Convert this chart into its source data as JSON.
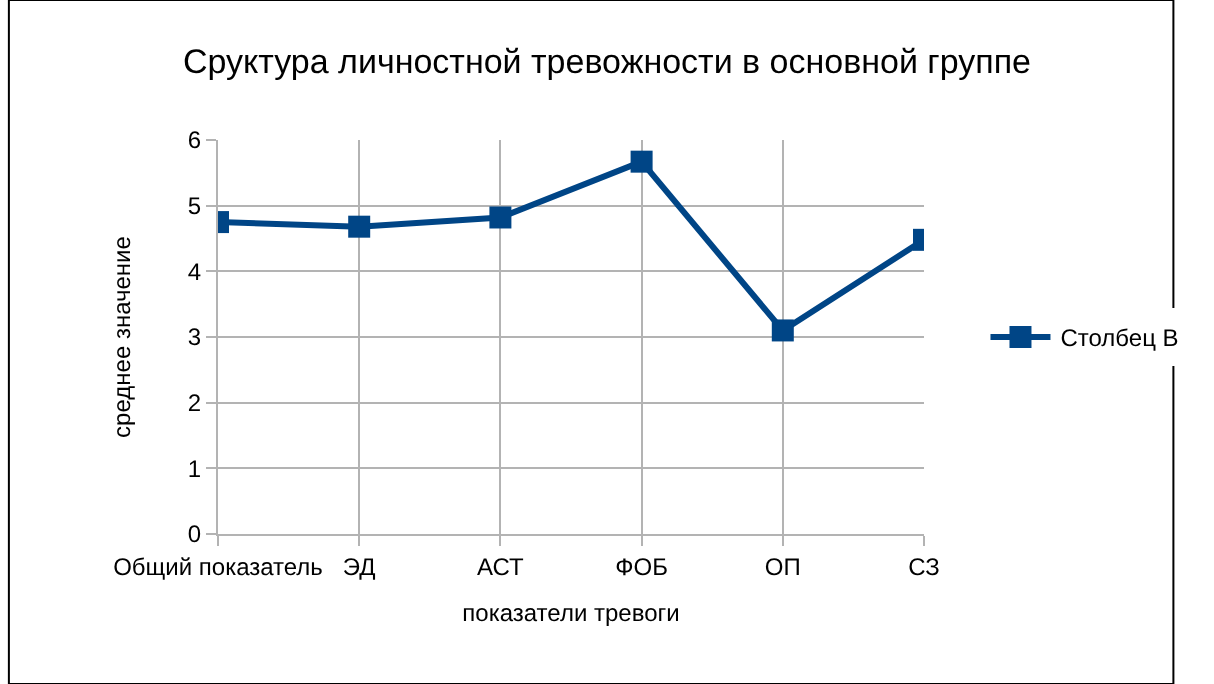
{
  "chart_data": {
    "type": "line",
    "title": "Сруктура личностной тревожности в основной группе",
    "xlabel": "показатели тревоги",
    "ylabel": "среднее значение",
    "categories": [
      "Общий показатель",
      "ЭД",
      "АСТ",
      "ФОБ",
      "ОП",
      "СЗ"
    ],
    "series": [
      {
        "name": "Столбец B",
        "color": "#004586",
        "values": [
          4.75,
          4.68,
          4.82,
          5.67,
          3.1,
          4.48
        ]
      }
    ],
    "ylim": [
      0,
      6
    ],
    "yticks": [
      0,
      1,
      2,
      3,
      4,
      5,
      6
    ],
    "grid": true,
    "legend": "right",
    "marker": "square",
    "line_style": "solid"
  }
}
